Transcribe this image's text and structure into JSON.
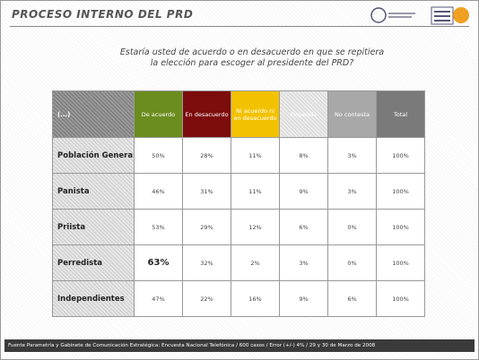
{
  "header": {
    "title": "PROCESO INTERNO DEL PRD"
  },
  "question": {
    "lines": [
      "Estaría usted de acuerdo o en desacuerdo en que se repitiera",
      "la elección para escoger al presidente del PRD?"
    ]
  },
  "table": {
    "columns": [
      "(...)",
      "De acuerdo",
      "En desacuerdo",
      "Ni acuerdo ni en desacuerdo",
      "Depende",
      "No contesta",
      "Total"
    ],
    "rows": [
      [
        "Población Genera",
        "50%",
        "28%",
        "11%",
        "8%",
        "3%",
        "100%"
      ],
      [
        "Panista",
        "46%",
        "31%",
        "11%",
        "9%",
        "3%",
        "100%"
      ],
      [
        "Priista",
        "53%",
        "29%",
        "12%",
        "6%",
        "0%",
        "100%"
      ],
      [
        "Perredista",
        "63%",
        "32%",
        "2%",
        "3%",
        "0%",
        "100%"
      ],
      [
        "Independientes",
        "47%",
        "22%",
        "16%",
        "9%",
        "6%",
        "100%"
      ]
    ]
  },
  "footer": {
    "text": "Fuente Parametría y Gabinete de Comunicación Estratégica: Encuesta Nacional Telefónica / 600 casos / Error (+/-) 4% / 29 y 30 de Marzo de 2008"
  }
}
